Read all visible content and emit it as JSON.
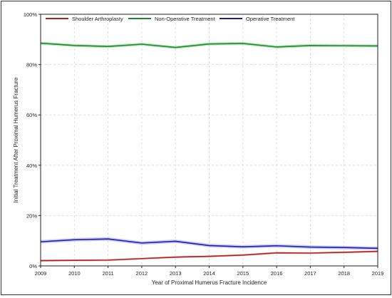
{
  "chart_data": {
    "type": "line",
    "x": [
      2009,
      2010,
      2011,
      2012,
      2013,
      2014,
      2015,
      2016,
      2017,
      2018,
      2019
    ],
    "xlabel": "Year of  Proximal Humerus Fracture Incidence",
    "ylabel": "Initial Treatment After Proximal Humerus Fracture",
    "ylim": [
      0,
      100
    ],
    "yticks": [
      "0%",
      "20%",
      "40%",
      "60%",
      "80%",
      "100%"
    ],
    "xticks": [
      "2009",
      "2010",
      "2011",
      "2012",
      "2013",
      "2014",
      "2015",
      "2016",
      "2017",
      "2018",
      "2019"
    ],
    "grid": true,
    "legend_position": "top",
    "series": [
      {
        "name": "Shoulder Arthroplasty",
        "color": "#b0201b",
        "band_color": "#f2b8b8",
        "values": [
          2.1,
          2.2,
          2.3,
          2.9,
          3.5,
          3.8,
          4.3,
          5.2,
          5.1,
          5.4,
          5.8
        ],
        "ci_half_width": 0.4
      },
      {
        "name": "Non-Operative Treatment",
        "color": "#1a8a2a",
        "band_color": "#a8dcae",
        "values": [
          88.5,
          87.6,
          87.2,
          88.1,
          86.8,
          88.2,
          88.4,
          87.0,
          87.6,
          87.5,
          87.4
        ],
        "ci_half_width": 0.6
      },
      {
        "name": "Operative Treatment",
        "color": "#1c1ca8",
        "band_color": "#b9b9ee",
        "values": [
          9.6,
          10.4,
          10.7,
          9.1,
          9.8,
          8.1,
          7.6,
          8.0,
          7.5,
          7.3,
          7.0
        ],
        "ci_half_width": 0.7
      }
    ]
  }
}
